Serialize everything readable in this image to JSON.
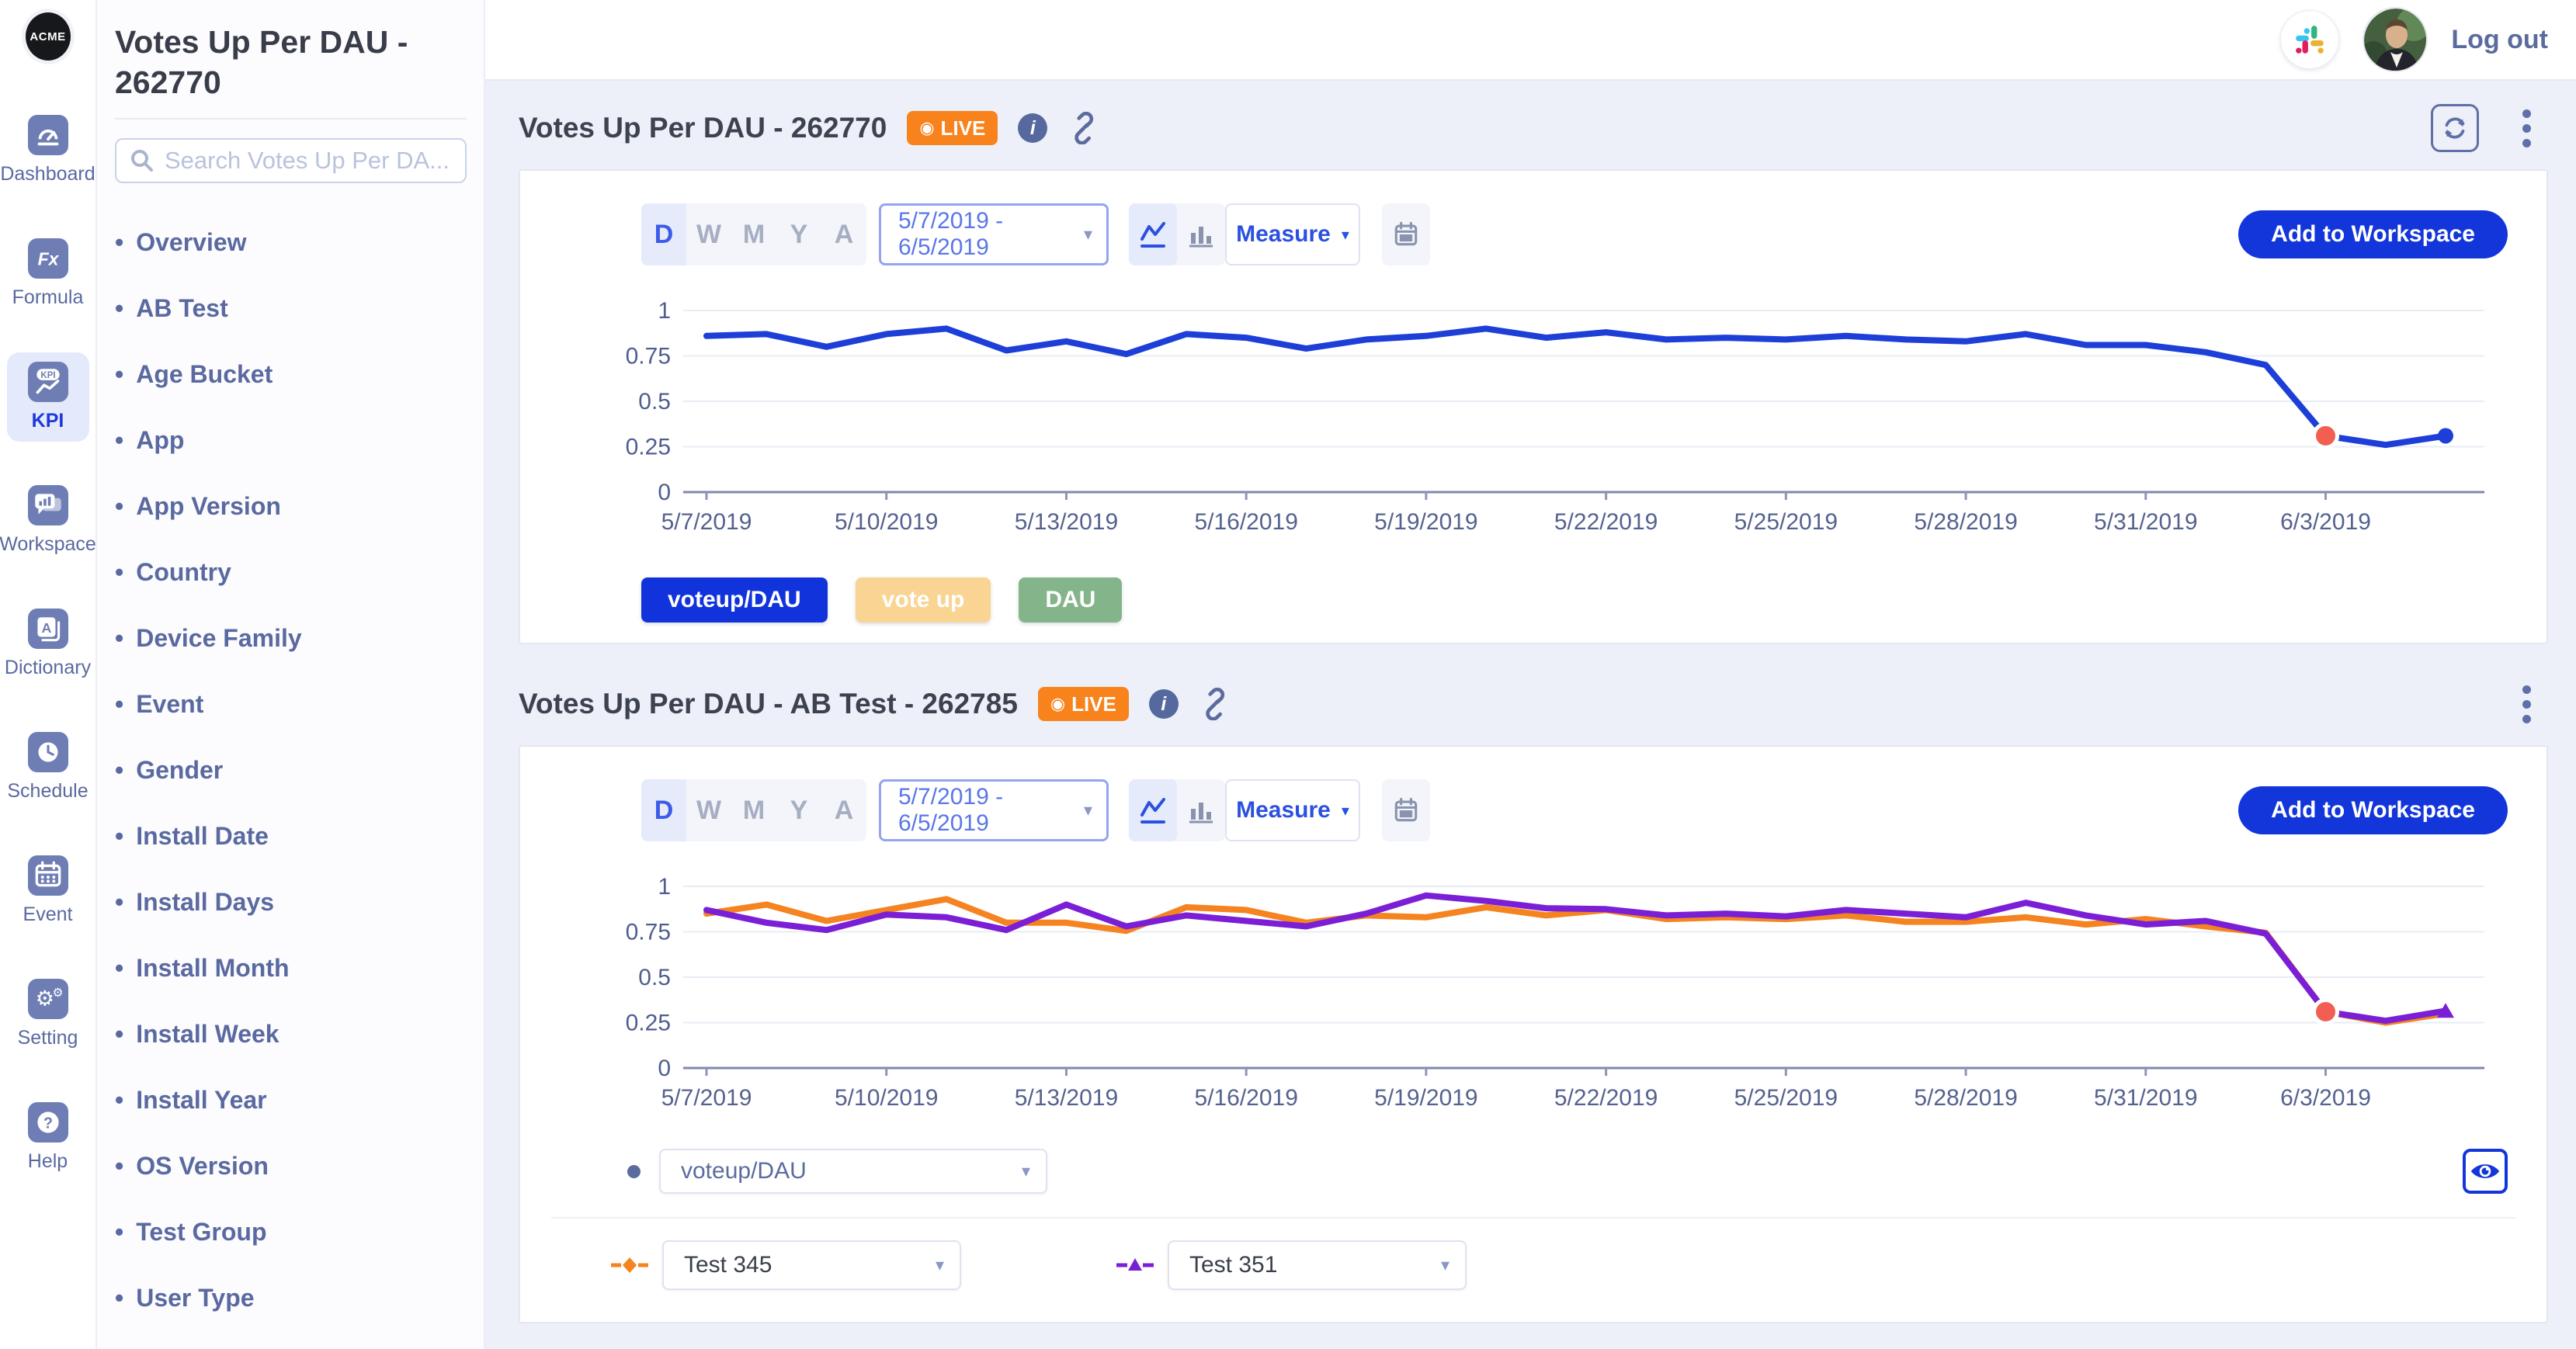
{
  "rail": {
    "logo_text": "ACME",
    "items": [
      {
        "label": "Dashboard",
        "icon": "dashboard-icon",
        "active": false
      },
      {
        "label": "Formula",
        "icon": "formula-icon",
        "active": false
      },
      {
        "label": "KPI",
        "icon": "kpi-icon",
        "active": true
      },
      {
        "label": "Workspace",
        "icon": "workspace-icon",
        "active": false
      },
      {
        "label": "Dictionary",
        "icon": "dictionary-icon",
        "active": false
      },
      {
        "label": "Schedule",
        "icon": "schedule-icon",
        "active": false
      },
      {
        "label": "Event",
        "icon": "event-icon",
        "active": false
      },
      {
        "label": "Setting",
        "icon": "setting-icon",
        "active": false
      },
      {
        "label": "Help",
        "icon": "help-icon",
        "active": false
      }
    ]
  },
  "sidenav": {
    "title": "Votes Up Per DAU - 262770",
    "search_placeholder": "Search Votes Up Per DA...",
    "search_icon": "search-icon",
    "items": [
      "Overview",
      "AB Test",
      "Age Bucket",
      "App",
      "App Version",
      "Country",
      "Device Family",
      "Event",
      "Gender",
      "Install Date",
      "Install Days",
      "Install Month",
      "Install Week",
      "Install Year",
      "OS Version",
      "Test Group",
      "User Type"
    ]
  },
  "topbar": {
    "icons": [
      "slack-icon",
      "avatar"
    ],
    "logout_label": "Log out"
  },
  "panels": [
    {
      "title": "Votes Up Per DAU - 262770",
      "live_label": "LIVE",
      "badge_color": "#f8831d",
      "header_icons": [
        "live-dot-icon",
        "info-icon",
        "link-icon",
        "refresh-icon",
        "kebab-icon"
      ],
      "controls": {
        "granularity": [
          "D",
          "W",
          "M",
          "Y",
          "A"
        ],
        "granularity_active": "D",
        "date_range": "5/7/2019 - 6/5/2019",
        "chart_type_icons": [
          "line-chart-icon",
          "bar-chart-icon"
        ],
        "chart_type_active": "line",
        "measure_label": "Measure",
        "calendar_icon": "calendar-icon",
        "add_to_workspace_label": "Add to Workspace"
      },
      "legend_buttons": [
        {
          "label": "voteup/DAU",
          "color": "#1133db",
          "active": true
        },
        {
          "label": "vote up",
          "color": "#f9d493",
          "active": false
        },
        {
          "label": "DAU",
          "color": "#84b489",
          "active": false
        }
      ]
    },
    {
      "title": "Votes Up Per DAU - AB Test - 262785",
      "live_label": "LIVE",
      "badge_color": "#f8831d",
      "header_icons": [
        "live-dot-icon",
        "info-icon",
        "link-icon",
        "kebab-icon"
      ],
      "controls": {
        "granularity": [
          "D",
          "W",
          "M",
          "Y",
          "A"
        ],
        "granularity_active": "D",
        "date_range": "5/7/2019 - 6/5/2019",
        "chart_type_icons": [
          "line-chart-icon",
          "bar-chart-icon"
        ],
        "chart_type_active": "line",
        "measure_label": "Measure",
        "calendar_icon": "calendar-icon",
        "add_to_workspace_label": "Add to Workspace"
      },
      "metric_select": {
        "value": "voteup/DAU",
        "bullet_color": "#5b6b9e"
      },
      "eye_icon": "eye-icon",
      "variant_selects": [
        {
          "value": "Test 345",
          "marker": "diamond",
          "marker_color": "#f5831f"
        },
        {
          "value": "Test 351",
          "marker": "triangle",
          "marker_color": "#7b1fd6"
        }
      ]
    }
  ],
  "chart_data": [
    {
      "type": "line",
      "title": "Votes Up Per DAU - 262770",
      "xlabel": "",
      "ylabel": "",
      "ylim": [
        0,
        1
      ],
      "yticks": [
        0,
        0.25,
        0.5,
        0.75,
        1
      ],
      "grid": true,
      "xtick_step": 3,
      "x": [
        "5/7/2019",
        "5/8/2019",
        "5/9/2019",
        "5/10/2019",
        "5/11/2019",
        "5/12/2019",
        "5/13/2019",
        "5/14/2019",
        "5/15/2019",
        "5/16/2019",
        "5/17/2019",
        "5/18/2019",
        "5/19/2019",
        "5/20/2019",
        "5/21/2019",
        "5/22/2019",
        "5/23/2019",
        "5/24/2019",
        "5/25/2019",
        "5/26/2019",
        "5/27/2019",
        "5/28/2019",
        "5/29/2019",
        "5/30/2019",
        "5/31/2019",
        "6/1/2019",
        "6/2/2019",
        "6/3/2019",
        "6/4/2019",
        "6/5/2019"
      ],
      "series": [
        {
          "name": "voteup/DAU",
          "color": "#1d3fd8",
          "end_marker": "dot",
          "values": [
            0.86,
            0.87,
            0.8,
            0.87,
            0.9,
            0.78,
            0.83,
            0.76,
            0.87,
            0.85,
            0.79,
            0.84,
            0.86,
            0.9,
            0.85,
            0.88,
            0.84,
            0.85,
            0.84,
            0.86,
            0.84,
            0.83,
            0.87,
            0.81,
            0.81,
            0.77,
            0.7,
            0.31,
            0.26,
            0.31
          ]
        }
      ],
      "anomaly": {
        "index": 27,
        "series": 0,
        "color": "#f25e51"
      }
    },
    {
      "type": "line",
      "title": "Votes Up Per DAU - AB Test - 262785",
      "xlabel": "",
      "ylabel": "",
      "ylim": [
        0,
        1
      ],
      "yticks": [
        0,
        0.25,
        0.5,
        0.75,
        1
      ],
      "grid": true,
      "xtick_step": 3,
      "x": [
        "5/7/2019",
        "5/8/2019",
        "5/9/2019",
        "5/10/2019",
        "5/11/2019",
        "5/12/2019",
        "5/13/2019",
        "5/14/2019",
        "5/15/2019",
        "5/16/2019",
        "5/17/2019",
        "5/18/2019",
        "5/19/2019",
        "5/20/2019",
        "5/21/2019",
        "5/22/2019",
        "5/23/2019",
        "5/24/2019",
        "5/25/2019",
        "5/26/2019",
        "5/27/2019",
        "5/28/2019",
        "5/29/2019",
        "5/30/2019",
        "5/31/2019",
        "6/1/2019",
        "6/2/2019",
        "6/3/2019",
        "6/4/2019",
        "6/5/2019"
      ],
      "series": [
        {
          "name": "Test 345",
          "color": "#f5831f",
          "end_marker": "none",
          "values": [
            0.85,
            0.9,
            0.81,
            0.87,
            0.93,
            0.8,
            0.8,
            0.755,
            0.885,
            0.87,
            0.8,
            0.84,
            0.83,
            0.885,
            0.84,
            0.87,
            0.82,
            0.83,
            0.82,
            0.84,
            0.805,
            0.805,
            0.83,
            0.79,
            0.82,
            0.78,
            0.745,
            0.31,
            0.25,
            0.3
          ]
        },
        {
          "name": "Test 351",
          "color": "#7b1fd6",
          "end_marker": "triangle",
          "values": [
            0.87,
            0.8,
            0.76,
            0.845,
            0.83,
            0.76,
            0.9,
            0.78,
            0.84,
            0.81,
            0.78,
            0.85,
            0.95,
            0.92,
            0.88,
            0.875,
            0.84,
            0.85,
            0.835,
            0.87,
            0.85,
            0.83,
            0.91,
            0.84,
            0.79,
            0.81,
            0.74,
            0.31,
            0.26,
            0.315
          ]
        }
      ],
      "anomaly": {
        "index": 27,
        "series": 1,
        "color": "#f25e51"
      }
    }
  ]
}
